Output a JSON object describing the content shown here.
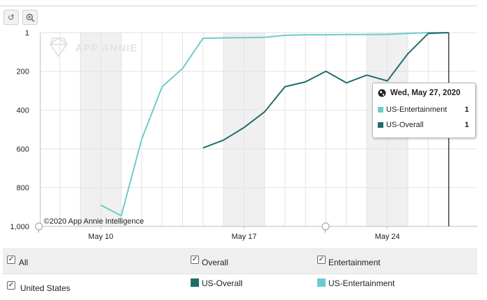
{
  "toolbar": {
    "reset_icon": "undo-icon",
    "zoom_icon": "zoom-in-icon"
  },
  "watermark": "APP ANNIE",
  "copyright": "©2020 App Annie Intelligence",
  "tooltip": {
    "date": "Wed, May 27, 2020",
    "rows": [
      {
        "name": "US-Entertainment",
        "value": "1",
        "color": "#6ecbcf"
      },
      {
        "name": "US-Overall",
        "value": "1",
        "color": "#226b6b"
      }
    ]
  },
  "filters": {
    "all_label": "All",
    "overall_label": "Overall",
    "entertainment_label": "Entertainment",
    "country_label": "United States",
    "series_overall_label": "US-Overall",
    "series_entertainment_label": "US-Entertainment",
    "colors": {
      "overall": "#226b6b",
      "entertainment": "#6ecbcf"
    }
  },
  "chart_data": {
    "type": "line",
    "y_inverted": true,
    "ylim": [
      1,
      1000
    ],
    "y_ticks": [
      {
        "value": 1,
        "label": "1"
      },
      {
        "value": 200,
        "label": "200"
      },
      {
        "value": 400,
        "label": "400"
      },
      {
        "value": 600,
        "label": "600"
      },
      {
        "value": 800,
        "label": "800"
      },
      {
        "value": 1000,
        "label": "1,000"
      }
    ],
    "x": [
      "2020-05-08",
      "2020-05-09",
      "2020-05-10",
      "2020-05-11",
      "2020-05-12",
      "2020-05-13",
      "2020-05-14",
      "2020-05-15",
      "2020-05-16",
      "2020-05-17",
      "2020-05-18",
      "2020-05-19",
      "2020-05-20",
      "2020-05-21",
      "2020-05-22",
      "2020-05-23",
      "2020-05-24",
      "2020-05-25",
      "2020-05-26",
      "2020-05-27"
    ],
    "x_ticks": [
      {
        "date": "2020-05-10",
        "label": "May 10"
      },
      {
        "date": "2020-05-17",
        "label": "May 17"
      },
      {
        "date": "2020-05-24",
        "label": "May 24"
      }
    ],
    "weekend_bands": [
      [
        "2020-05-09",
        "2020-05-11"
      ],
      [
        "2020-05-16",
        "2020-05-18"
      ],
      [
        "2020-05-23",
        "2020-05-25"
      ]
    ],
    "grid": true,
    "selected_date": "2020-05-27",
    "series": [
      {
        "name": "US-Entertainment",
        "color": "#6ecbcf",
        "values": [
          null,
          null,
          890,
          945,
          550,
          280,
          185,
          30,
          28,
          27,
          25,
          15,
          12,
          12,
          11,
          11,
          10,
          5,
          1,
          1
        ]
      },
      {
        "name": "US-Overall",
        "color": "#226b6b",
        "values": [
          null,
          null,
          null,
          null,
          null,
          null,
          null,
          595,
          555,
          490,
          410,
          280,
          255,
          200,
          260,
          220,
          250,
          110,
          5,
          1
        ]
      }
    ]
  }
}
